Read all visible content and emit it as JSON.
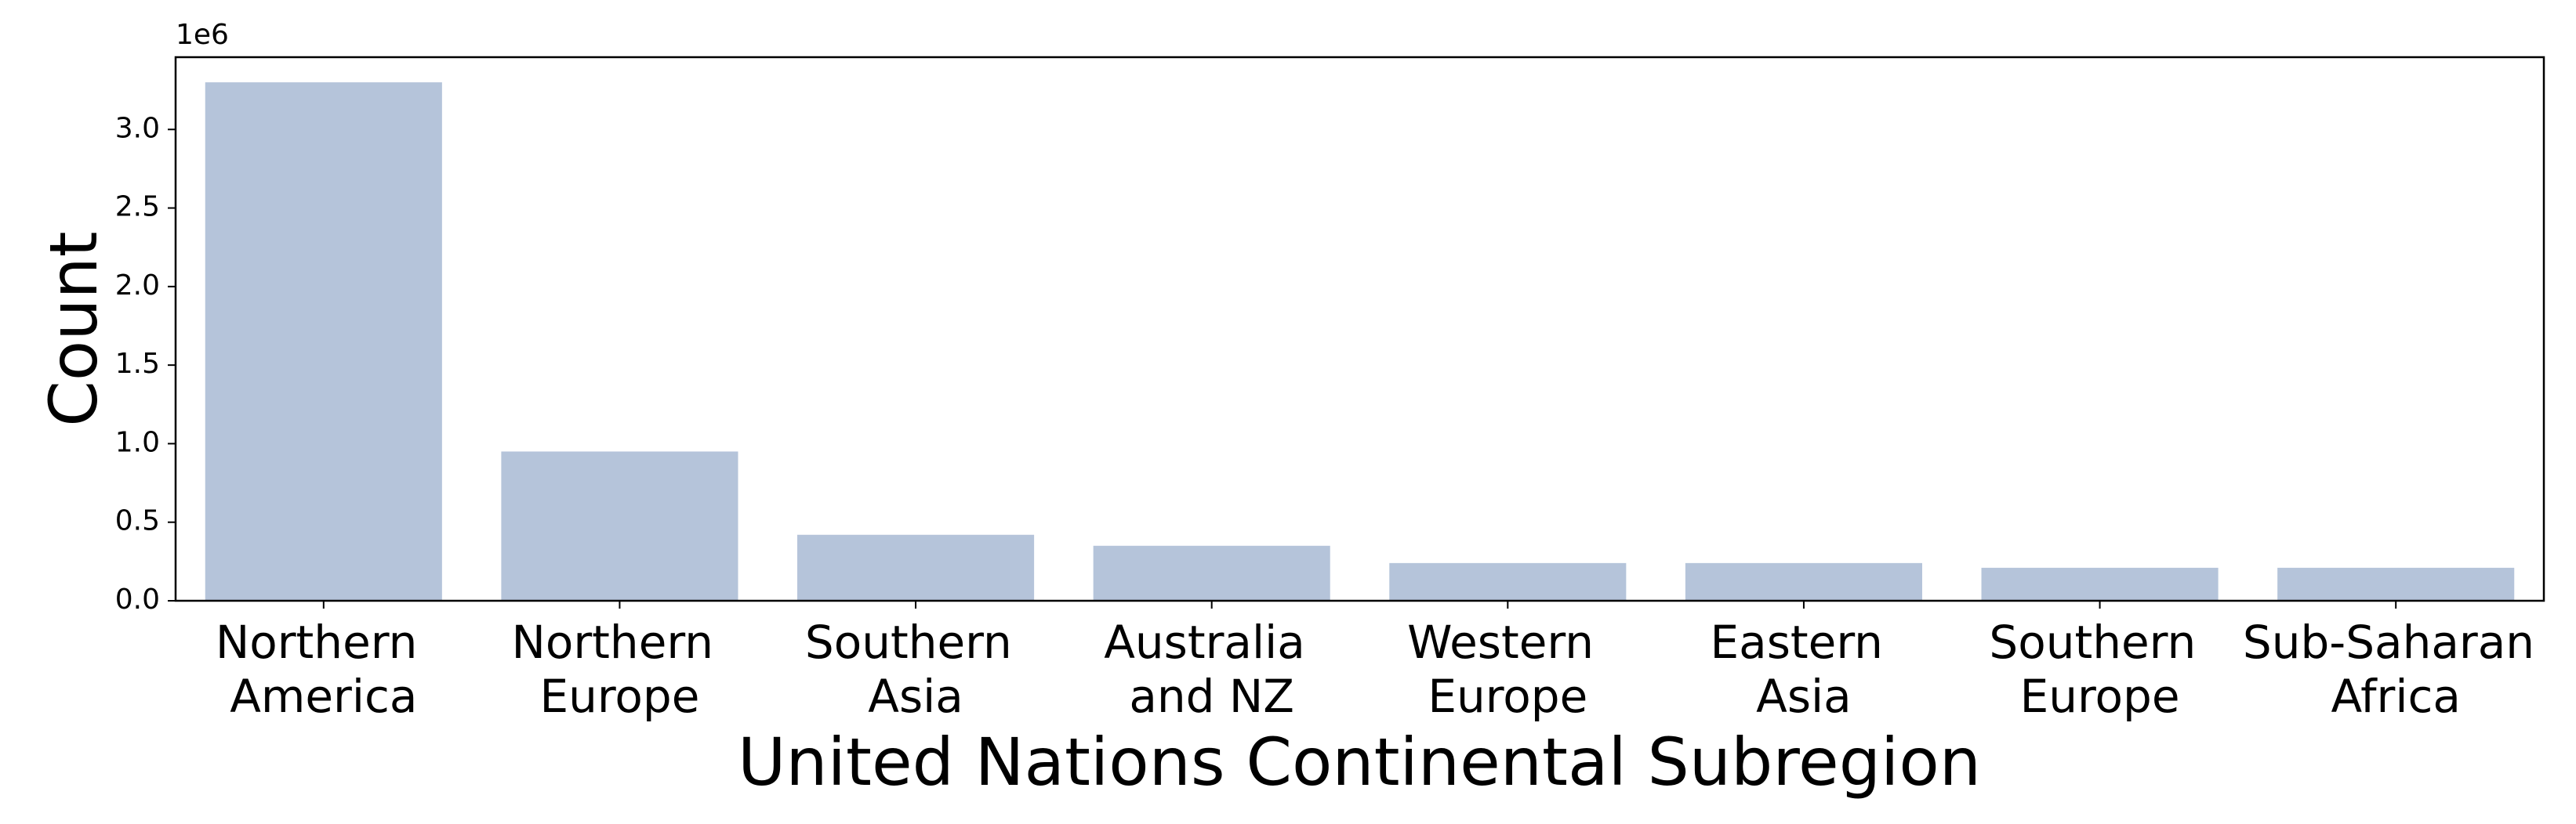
{
  "chart_data": {
    "type": "bar",
    "xlabel": "United Nations Continental Subregion",
    "ylabel": "Count",
    "y_offset_label": "1e6",
    "categories": [
      "Northern America",
      "Northern Europe",
      "Southern Asia",
      "Australia and NZ",
      "Western Europe",
      "Eastern Asia",
      "Southern Europe",
      "Sub-Saharan Africa"
    ],
    "values": [
      3.3,
      0.95,
      0.42,
      0.35,
      0.24,
      0.24,
      0.21,
      0.21
    ],
    "color": "#b5c4da",
    "ylim": [
      0,
      3.46
    ],
    "yticks": [
      {
        "value": 0,
        "label": "0.0"
      },
      0.5,
      {
        "value": 1,
        "label": "1.0"
      },
      1.5,
      {
        "value": 2,
        "label": "2.0"
      },
      2.5,
      {
        "value": 3,
        "label": "3.0"
      }
    ],
    "grid": false
  }
}
